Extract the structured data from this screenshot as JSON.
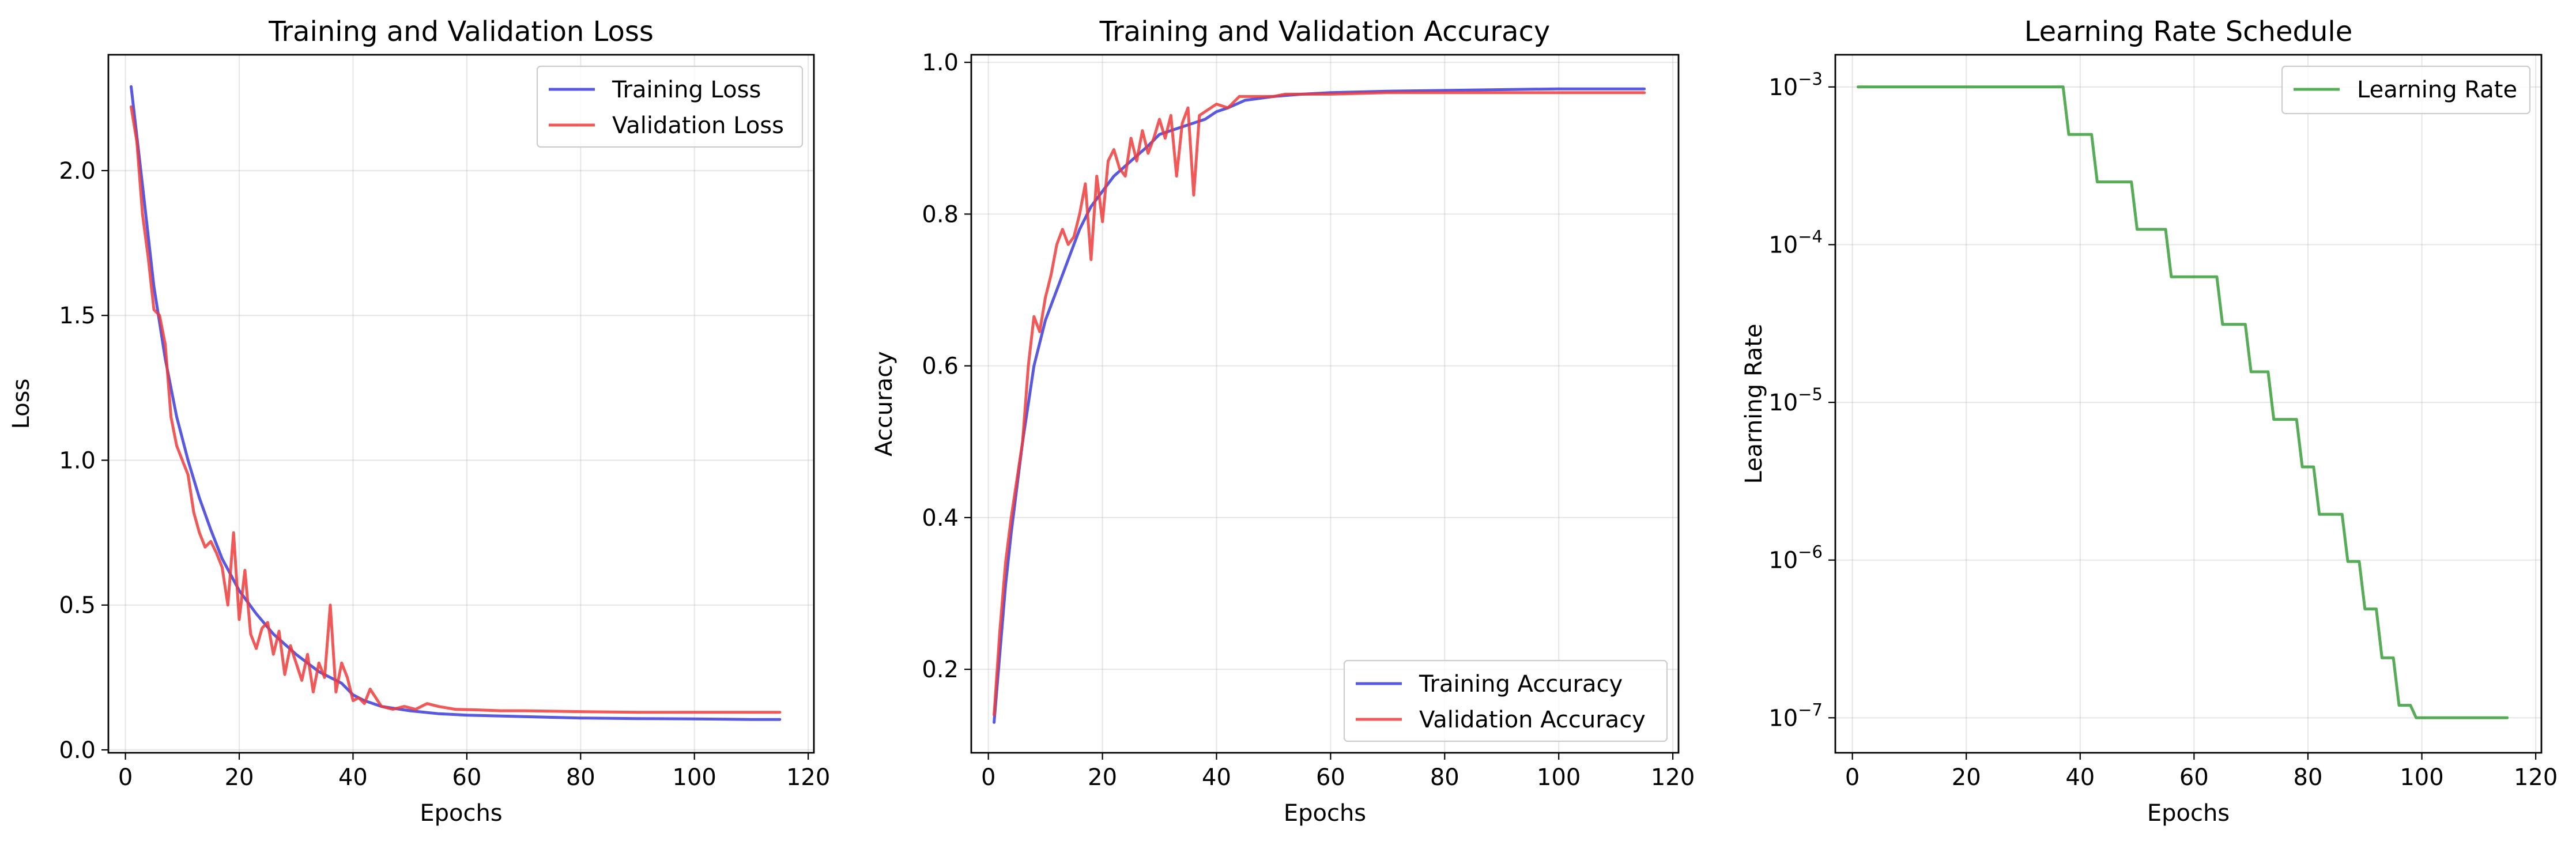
{
  "colors": {
    "training": "#3b3bdb",
    "validation": "#ee3b3b",
    "learning_rate": "#3a9e3a"
  },
  "chart_data": [
    {
      "type": "line",
      "title": "Training and Validation Loss",
      "xlabel": "Epochs",
      "ylabel": "Loss",
      "xlim": [
        -3,
        121
      ],
      "ylim": [
        -0.01,
        2.4
      ],
      "xticks": [
        0,
        20,
        40,
        60,
        80,
        100,
        120
      ],
      "yticks": [
        0.0,
        0.5,
        1.0,
        1.5,
        2.0
      ],
      "ytick_labels": [
        "0.0",
        "0.5",
        "1.0",
        "1.5",
        "2.0"
      ],
      "grid": true,
      "legend": "top-right",
      "series": [
        {
          "name": "Training Loss",
          "color": "#3b3bdb",
          "points": [
            [
              1,
              2.29
            ],
            [
              3,
              1.95
            ],
            [
              5,
              1.6
            ],
            [
              7,
              1.35
            ],
            [
              9,
              1.15
            ],
            [
              11,
              1.0
            ],
            [
              13,
              0.87
            ],
            [
              15,
              0.76
            ],
            [
              17,
              0.66
            ],
            [
              20,
              0.55
            ],
            [
              23,
              0.47
            ],
            [
              26,
              0.4
            ],
            [
              30,
              0.33
            ],
            [
              34,
              0.27
            ],
            [
              38,
              0.23
            ],
            [
              40,
              0.19
            ],
            [
              42,
              0.17
            ],
            [
              45,
              0.15
            ],
            [
              50,
              0.135
            ],
            [
              55,
              0.125
            ],
            [
              60,
              0.12
            ],
            [
              70,
              0.115
            ],
            [
              80,
              0.11
            ],
            [
              90,
              0.108
            ],
            [
              100,
              0.107
            ],
            [
              110,
              0.105
            ],
            [
              115,
              0.105
            ]
          ]
        },
        {
          "name": "Validation Loss",
          "color": "#ee3b3b",
          "points": [
            [
              1,
              2.22
            ],
            [
              2,
              2.1
            ],
            [
              3,
              1.85
            ],
            [
              4,
              1.7
            ],
            [
              5,
              1.52
            ],
            [
              6,
              1.5
            ],
            [
              7,
              1.4
            ],
            [
              8,
              1.15
            ],
            [
              9,
              1.05
            ],
            [
              10,
              1.0
            ],
            [
              11,
              0.95
            ],
            [
              12,
              0.82
            ],
            [
              13,
              0.75
            ],
            [
              14,
              0.7
            ],
            [
              15,
              0.72
            ],
            [
              16,
              0.68
            ],
            [
              17,
              0.63
            ],
            [
              18,
              0.5
            ],
            [
              19,
              0.75
            ],
            [
              20,
              0.45
            ],
            [
              21,
              0.62
            ],
            [
              22,
              0.4
            ],
            [
              23,
              0.35
            ],
            [
              24,
              0.42
            ],
            [
              25,
              0.44
            ],
            [
              26,
              0.33
            ],
            [
              27,
              0.41
            ],
            [
              28,
              0.26
            ],
            [
              29,
              0.36
            ],
            [
              30,
              0.3
            ],
            [
              31,
              0.24
            ],
            [
              32,
              0.33
            ],
            [
              33,
              0.2
            ],
            [
              34,
              0.3
            ],
            [
              35,
              0.25
            ],
            [
              36,
              0.5
            ],
            [
              37,
              0.2
            ],
            [
              38,
              0.3
            ],
            [
              39,
              0.25
            ],
            [
              40,
              0.17
            ],
            [
              41,
              0.18
            ],
            [
              42,
              0.16
            ],
            [
              43,
              0.21
            ],
            [
              44,
              0.18
            ],
            [
              45,
              0.15
            ],
            [
              47,
              0.14
            ],
            [
              49,
              0.15
            ],
            [
              51,
              0.14
            ],
            [
              53,
              0.16
            ],
            [
              55,
              0.15
            ],
            [
              58,
              0.14
            ],
            [
              62,
              0.138
            ],
            [
              66,
              0.135
            ],
            [
              70,
              0.135
            ],
            [
              80,
              0.132
            ],
            [
              90,
              0.13
            ],
            [
              100,
              0.13
            ],
            [
              115,
              0.13
            ]
          ]
        }
      ]
    },
    {
      "type": "line",
      "title": "Training and Validation Accuracy",
      "xlabel": "Epochs",
      "ylabel": "Accuracy",
      "xlim": [
        -3,
        121
      ],
      "ylim": [
        0.09,
        1.01
      ],
      "xticks": [
        0,
        20,
        40,
        60,
        80,
        100,
        120
      ],
      "yticks": [
        0.2,
        0.4,
        0.6,
        0.8,
        1.0
      ],
      "ytick_labels": [
        "0.2",
        "0.4",
        "0.6",
        "0.8",
        "1.0"
      ],
      "grid": true,
      "legend": "bottom-right",
      "series": [
        {
          "name": "Training Accuracy",
          "color": "#3b3bdb",
          "points": [
            [
              1,
              0.13
            ],
            [
              2,
              0.22
            ],
            [
              3,
              0.31
            ],
            [
              4,
              0.38
            ],
            [
              5,
              0.44
            ],
            [
              6,
              0.5
            ],
            [
              7,
              0.55
            ],
            [
              8,
              0.6
            ],
            [
              9,
              0.63
            ],
            [
              10,
              0.66
            ],
            [
              12,
              0.7
            ],
            [
              14,
              0.74
            ],
            [
              16,
              0.78
            ],
            [
              18,
              0.81
            ],
            [
              20,
              0.83
            ],
            [
              22,
              0.85
            ],
            [
              25,
              0.87
            ],
            [
              28,
              0.89
            ],
            [
              30,
              0.905
            ],
            [
              34,
              0.915
            ],
            [
              38,
              0.925
            ],
            [
              40,
              0.935
            ],
            [
              42,
              0.94
            ],
            [
              45,
              0.95
            ],
            [
              50,
              0.955
            ],
            [
              55,
              0.958
            ],
            [
              60,
              0.96
            ],
            [
              70,
              0.962
            ],
            [
              80,
              0.963
            ],
            [
              90,
              0.964
            ],
            [
              100,
              0.965
            ],
            [
              110,
              0.965
            ],
            [
              115,
              0.965
            ]
          ]
        },
        {
          "name": "Validation Accuracy",
          "color": "#ee3b3b",
          "points": [
            [
              1,
              0.14
            ],
            [
              2,
              0.25
            ],
            [
              3,
              0.34
            ],
            [
              4,
              0.4
            ],
            [
              5,
              0.45
            ],
            [
              6,
              0.5
            ],
            [
              7,
              0.6
            ],
            [
              8,
              0.665
            ],
            [
              9,
              0.645
            ],
            [
              10,
              0.69
            ],
            [
              11,
              0.72
            ],
            [
              12,
              0.76
            ],
            [
              13,
              0.78
            ],
            [
              14,
              0.76
            ],
            [
              15,
              0.77
            ],
            [
              16,
              0.8
            ],
            [
              17,
              0.84
            ],
            [
              18,
              0.74
            ],
            [
              19,
              0.85
            ],
            [
              20,
              0.79
            ],
            [
              21,
              0.87
            ],
            [
              22,
              0.885
            ],
            [
              23,
              0.86
            ],
            [
              24,
              0.85
            ],
            [
              25,
              0.9
            ],
            [
              26,
              0.87
            ],
            [
              27,
              0.91
            ],
            [
              28,
              0.88
            ],
            [
              29,
              0.9
            ],
            [
              30,
              0.925
            ],
            [
              31,
              0.9
            ],
            [
              32,
              0.93
            ],
            [
              33,
              0.85
            ],
            [
              34,
              0.92
            ],
            [
              35,
              0.94
            ],
            [
              36,
              0.825
            ],
            [
              37,
              0.93
            ],
            [
              38,
              0.935
            ],
            [
              40,
              0.945
            ],
            [
              42,
              0.94
            ],
            [
              44,
              0.955
            ],
            [
              46,
              0.955
            ],
            [
              48,
              0.955
            ],
            [
              50,
              0.955
            ],
            [
              52,
              0.958
            ],
            [
              55,
              0.958
            ],
            [
              60,
              0.958
            ],
            [
              70,
              0.96
            ],
            [
              80,
              0.96
            ],
            [
              90,
              0.96
            ],
            [
              100,
              0.96
            ],
            [
              110,
              0.96
            ],
            [
              115,
              0.96
            ]
          ]
        }
      ]
    },
    {
      "type": "line",
      "title": "Learning Rate Schedule",
      "xlabel": "Epochs",
      "ylabel": "Learning Rate",
      "xlim": [
        -3,
        121
      ],
      "ylim": [
        6e-08,
        0.0016
      ],
      "yscale": "log",
      "xticks": [
        0,
        20,
        40,
        60,
        80,
        100,
        120
      ],
      "yticks": [
        1e-07,
        1e-06,
        1e-05,
        0.0001,
        0.001
      ],
      "ytick_base": "10",
      "ytick_exponents": [
        "−7",
        "−6",
        "−5",
        "−4",
        "−3"
      ],
      "grid": true,
      "legend": "top-right",
      "series": [
        {
          "name": "Learning Rate",
          "color": "#3a9e3a",
          "points": [
            [
              1,
              0.001
            ],
            [
              37,
              0.001
            ],
            [
              38,
              0.0005
            ],
            [
              42,
              0.0005
            ],
            [
              43,
              0.00025
            ],
            [
              49,
              0.00025
            ],
            [
              50,
              0.000125
            ],
            [
              55,
              0.000125
            ],
            [
              56,
              6.25e-05
            ],
            [
              64,
              6.25e-05
            ],
            [
              65,
              3.125e-05
            ],
            [
              69,
              3.125e-05
            ],
            [
              70,
              1.5625e-05
            ],
            [
              73,
              1.5625e-05
            ],
            [
              74,
              7.8e-06
            ],
            [
              78,
              7.8e-06
            ],
            [
              79,
              3.9e-06
            ],
            [
              81,
              3.9e-06
            ],
            [
              82,
              1.95e-06
            ],
            [
              86,
              1.95e-06
            ],
            [
              87,
              9.8e-07
            ],
            [
              89,
              9.8e-07
            ],
            [
              90,
              4.9e-07
            ],
            [
              92,
              4.9e-07
            ],
            [
              93,
              2.4e-07
            ],
            [
              95,
              2.4e-07
            ],
            [
              96,
              1.2e-07
            ],
            [
              98,
              1.2e-07
            ],
            [
              99,
              1e-07
            ],
            [
              115,
              1e-07
            ]
          ]
        }
      ]
    }
  ]
}
